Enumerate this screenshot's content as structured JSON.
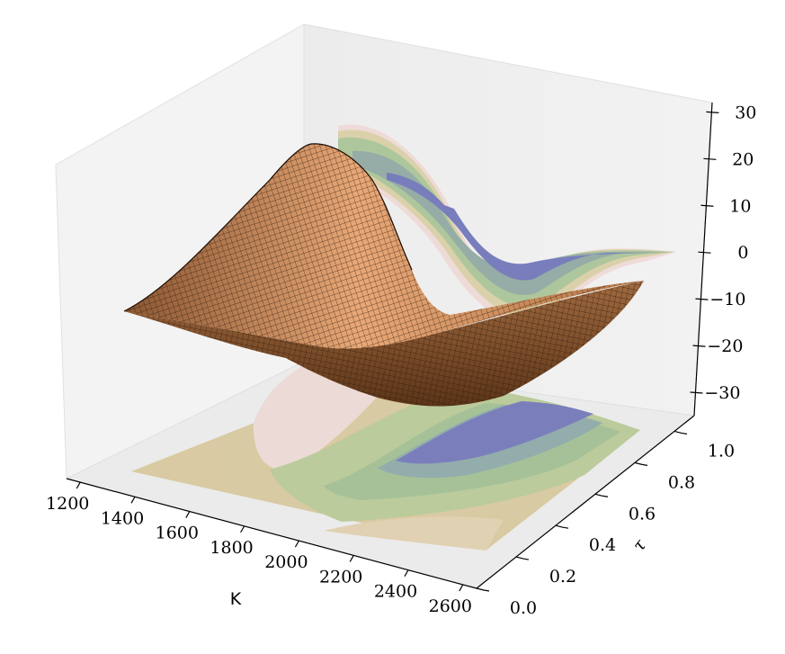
{
  "chart_data": {
    "type": "surface3d",
    "title": "",
    "xlabel": "K",
    "ylabel": "τ",
    "zlabel": "",
    "x_ticks": [
      "1200",
      "1400",
      "1600",
      "1800",
      "2000",
      "2200",
      "2400",
      "2600"
    ],
    "y_ticks": [
      "0.0",
      "0.2",
      "0.4",
      "0.6",
      "0.8",
      "1.0"
    ],
    "z_ticks": [
      "30",
      "20",
      "10",
      "0",
      "−10",
      "−20",
      "−30"
    ],
    "xlim": [
      1150,
      2650
    ],
    "ylim": [
      0.0,
      1.1
    ],
    "zlim": [
      -35,
      32
    ],
    "surface": {
      "colormap": "copper",
      "wireframe": true,
      "z_max_approx": 27,
      "z_min_approx": -30
    },
    "projections": [
      "contour on z-floor",
      "contour on back wall (x–z plane)"
    ],
    "grid": false,
    "colors": {
      "pane_light": "#f5f5f5",
      "pane_dark": "#e8e8e8",
      "surface_light": "#f4b985",
      "surface_dark": "#6a3e1f",
      "contour_blue": "#6e74b8",
      "contour_green": "#a8c496",
      "contour_tan": "#dcc9a0",
      "contour_pink": "#ecd8d6"
    }
  }
}
